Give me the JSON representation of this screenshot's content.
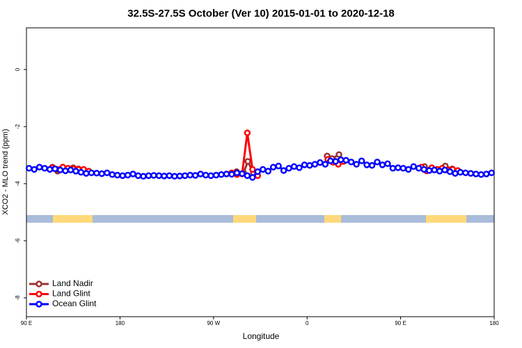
{
  "chart_data": {
    "type": "line",
    "title": "32.5S-27.5S October (Ver 10)   2015-01-01 to 2020-12-18",
    "xlabel": "Longitude",
    "ylabel": "XCO2 - MLO trend (ppm)",
    "xlim": [
      90,
      540
    ],
    "xticks": [
      {
        "value": 90,
        "label": "90 E"
      },
      {
        "value": 180,
        "label": "180"
      },
      {
        "value": 270,
        "label": "90 W"
      },
      {
        "value": 360,
        "label": "0"
      },
      {
        "value": 450,
        "label": "90 E"
      },
      {
        "value": 540,
        "label": "180"
      }
    ],
    "ylim": [
      -8.66,
      1.46
    ],
    "yticks": [
      0,
      -2,
      -4,
      -6,
      -8
    ],
    "legend": "bottom-left",
    "series": [
      {
        "name": "Land Nadir",
        "color": "#993333",
        "x": [
          115,
          120,
          125,
          130,
          135,
          140,
          145,
          150,
          null,
          292.2,
          299,
          303,
          308.3,
          null,
          379.3,
          384,
          390.7,
          null,
          473,
          479.7,
          493,
          499.7
        ],
        "values": [
          -3.42,
          -3.56,
          -3.42,
          -3.48,
          -3.44,
          -3.48,
          -3.52,
          -3.58,
          null,
          -3.58,
          -3.62,
          -3.22,
          -3.62,
          null,
          -3.03,
          -3.12,
          -2.98,
          null,
          -3.4,
          -3.5,
          -3.38,
          -3.48
        ]
      },
      {
        "name": "Land Glint",
        "color": "#ff0000",
        "x": [
          115,
          120,
          125,
          130,
          135,
          140,
          145,
          150,
          null,
          287.5,
          292.5,
          297.5,
          302.5,
          307.5,
          312.5,
          null,
          380,
          385,
          390,
          395,
          null,
          470,
          475,
          480,
          485,
          490,
          495,
          500,
          505
        ],
        "values": [
          -3.44,
          -3.5,
          -3.42,
          -3.46,
          -3.48,
          -3.5,
          -3.5,
          -3.56,
          null,
          -3.62,
          -3.68,
          -3.66,
          -2.22,
          -3.5,
          -3.72,
          null,
          -3.15,
          -3.25,
          -3.32,
          -3.22,
          null,
          -3.42,
          -3.55,
          -3.44,
          -3.5,
          -3.46,
          -3.52,
          -3.5,
          -3.54
        ]
      },
      {
        "name": "Ocean Glint",
        "color": "#0000ff",
        "x": [
          92.5,
          97.5,
          102.5,
          107.5,
          112.5,
          117.5,
          122.5,
          127.5,
          132.5,
          137.5,
          142.5,
          147.5,
          152.5,
          157.5,
          162.5,
          167.5,
          172.5,
          177.5,
          182.5,
          187.5,
          192.5,
          197.5,
          202.5,
          207.5,
          212.5,
          217.5,
          222.5,
          227.5,
          232.5,
          237.5,
          242.5,
          247.5,
          252.5,
          257.5,
          262.5,
          267.5,
          272.5,
          277.5,
          282.5,
          287.5,
          292.5,
          297.5,
          302.5,
          307.5,
          312.5,
          317.5,
          322.5,
          327.5,
          332.5,
          337.5,
          342.5,
          347.5,
          352.5,
          357.5,
          362.5,
          367.5,
          372.5,
          377.5,
          382.5,
          387.5,
          392.5,
          397.5,
          402.5,
          407.5,
          412.5,
          417.5,
          422.5,
          427.5,
          432.5,
          437.5,
          442.5,
          447.5,
          452.5,
          457.5,
          462.5,
          467.5,
          472.5,
          477.5,
          482.5,
          487.5,
          492.5,
          497.5,
          502.5,
          507.5,
          512.5,
          517.5,
          522.5,
          527.5,
          532.5,
          537.5
        ],
        "values": [
          -3.46,
          -3.5,
          -3.42,
          -3.46,
          -3.5,
          -3.48,
          -3.52,
          -3.55,
          -3.52,
          -3.56,
          -3.6,
          -3.64,
          -3.62,
          -3.63,
          -3.65,
          -3.62,
          -3.68,
          -3.7,
          -3.72,
          -3.7,
          -3.66,
          -3.72,
          -3.74,
          -3.72,
          -3.71,
          -3.72,
          -3.73,
          -3.72,
          -3.74,
          -3.73,
          -3.72,
          -3.7,
          -3.71,
          -3.66,
          -3.7,
          -3.72,
          -3.7,
          -3.68,
          -3.66,
          -3.67,
          -3.62,
          -3.65,
          -3.72,
          -3.78,
          -3.58,
          -3.5,
          -3.56,
          -3.42,
          -3.38,
          -3.54,
          -3.46,
          -3.4,
          -3.44,
          -3.34,
          -3.36,
          -3.32,
          -3.26,
          -3.32,
          -3.2,
          -3.22,
          -3.16,
          -3.18,
          -3.24,
          -3.32,
          -3.2,
          -3.34,
          -3.36,
          -3.24,
          -3.34,
          -3.3,
          -3.46,
          -3.44,
          -3.46,
          -3.5,
          -3.4,
          -3.46,
          -3.5,
          -3.54,
          -3.52,
          -3.56,
          -3.52,
          -3.58,
          -3.64,
          -3.6,
          -3.62,
          -3.64,
          -3.66,
          -3.68,
          -3.66,
          -3.62
        ]
      }
    ]
  }
}
